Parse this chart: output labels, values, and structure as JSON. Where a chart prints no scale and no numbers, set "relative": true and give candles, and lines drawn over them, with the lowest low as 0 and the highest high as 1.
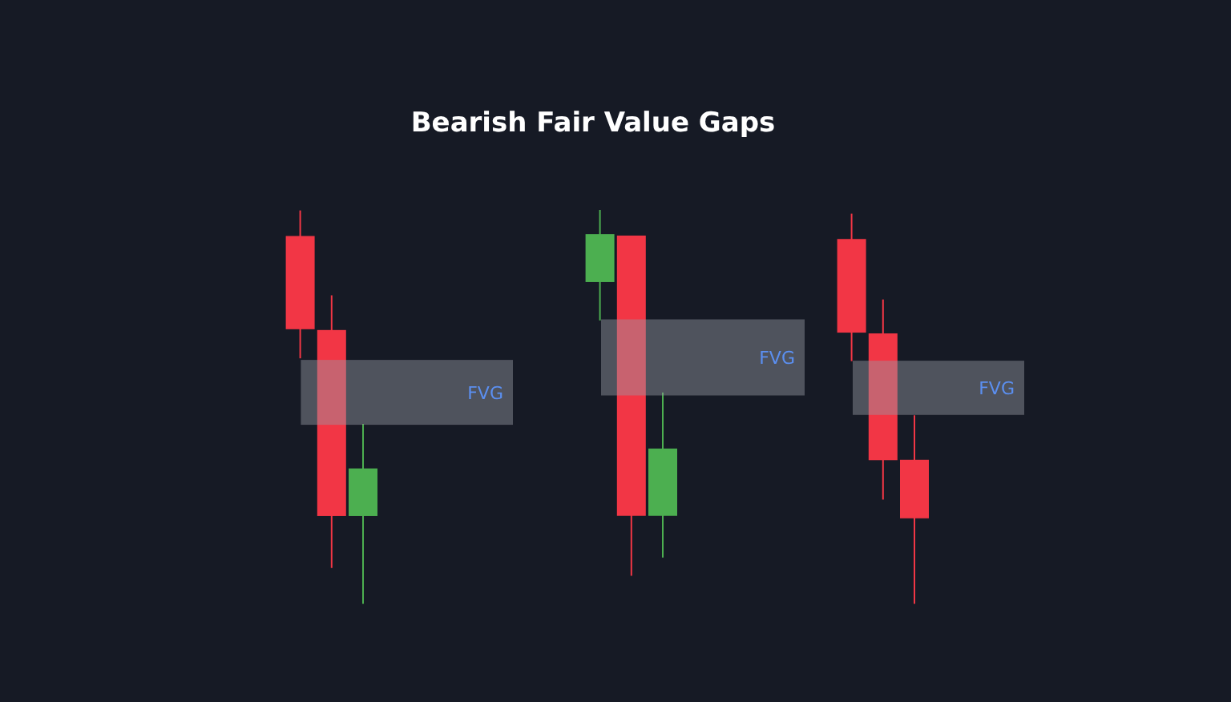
{
  "chart_data": [
    {
      "type": "candlestick",
      "relative": true,
      "categories": [
        null,
        null,
        null
      ],
      "ohlc": [
        [
          0.935,
          1,
          0.624,
          0.698
        ],
        [
          0.696,
          0.784,
          0.091,
          0.223
        ],
        [
          0.223,
          0.457,
          0,
          0.344
        ]
      ],
      "colors": [
        "#f23645",
        "#f23645",
        "#4caf50"
      ],
      "bands": [
        {
          "axis": "y",
          "from": 0.455,
          "to": 0.62,
          "label": "FVG",
          "color": "#9598a1"
        }
      ]
    },
    {
      "type": "candlestick",
      "title": "Bearish Fair Value Gaps",
      "relative": true,
      "categories": [
        null,
        null,
        null
      ],
      "ohlc": [
        [
          0.803,
          1,
          0.698,
          0.934
        ],
        [
          0.93,
          0.93,
          0,
          0.164
        ],
        [
          0.164,
          0.501,
          0.05,
          0.348
        ]
      ],
      "colors": [
        "#4caf50",
        "#f23645",
        "#4caf50"
      ],
      "bands": [
        {
          "axis": "y",
          "from": 0.493,
          "to": 0.701,
          "label": "FVG",
          "color": "#9598a1"
        }
      ]
    },
    {
      "type": "candlestick",
      "relative": true,
      "categories": [
        null,
        null,
        null
      ],
      "ohlc": [
        [
          0.935,
          1,
          0.622,
          0.695
        ],
        [
          0.693,
          0.78,
          0.267,
          0.368
        ],
        [
          0.369,
          0.483,
          0,
          0.219
        ]
      ],
      "colors": [
        "#f23645",
        "#f23645",
        "#f23645"
      ],
      "bands": [
        {
          "axis": "y",
          "from": 0.484,
          "to": 0.623,
          "label": "FVG",
          "color": "#9598a1"
        }
      ]
    }
  ]
}
